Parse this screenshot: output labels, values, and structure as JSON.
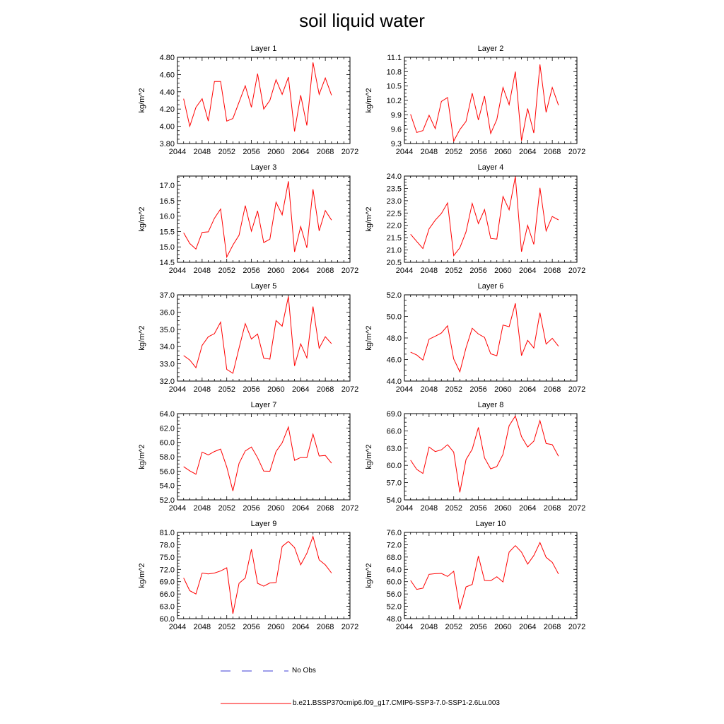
{
  "title": "soil liquid water",
  "legend": {
    "obs_label": "No Obs",
    "obs_color": "#3b3bd6",
    "model_label": "b.e21.BSSP370cmip6.f09_g17.CMIP6-SSP3-7.0-SSP1-2.6Lu.003",
    "model_color": "#ff0000"
  },
  "chart_data": [
    {
      "type": "line",
      "title": "Layer 1",
      "ylabel": "kg/m^2",
      "xlim": [
        2044,
        2072
      ],
      "xticks": [
        "2044",
        "2048",
        "2052",
        "2056",
        "2060",
        "2064",
        "2068",
        "2072"
      ],
      "ylim": [
        3.8,
        4.8
      ],
      "yticks": [
        "3.80",
        "4.00",
        "4.20",
        "4.40",
        "4.60",
        "4.80"
      ],
      "x": [
        2045,
        2046,
        2047,
        2048,
        2049,
        2050,
        2051,
        2052,
        2053,
        2054,
        2055,
        2056,
        2057,
        2058,
        2059,
        2060,
        2061,
        2062,
        2063,
        2064,
        2065,
        2066,
        2067,
        2068,
        2069
      ],
      "series": [
        {
          "values": [
            4.32,
            4.0,
            4.22,
            4.32,
            4.06,
            4.52,
            4.52,
            4.06,
            4.09,
            4.28,
            4.47,
            4.22,
            4.61,
            4.2,
            4.3,
            4.54,
            4.37,
            4.57,
            3.94,
            4.36,
            4.01,
            4.74,
            4.37,
            4.56,
            4.36
          ]
        }
      ]
    },
    {
      "type": "line",
      "title": "Layer 2",
      "ylabel": "kg/m^2",
      "xlim": [
        2044,
        2072
      ],
      "xticks": [
        "2044",
        "2048",
        "2052",
        "2056",
        "2060",
        "2064",
        "2068",
        "2072"
      ],
      "ylim": [
        9.3,
        11.1
      ],
      "yticks": [
        "9.3",
        "9.6",
        "9.9",
        "10.2",
        "10.5",
        "10.8",
        "11.1"
      ],
      "x": [
        2045,
        2046,
        2047,
        2048,
        2049,
        2050,
        2051,
        2052,
        2053,
        2054,
        2055,
        2056,
        2057,
        2058,
        2059,
        2060,
        2061,
        2062,
        2063,
        2064,
        2065,
        2066,
        2067,
        2068,
        2069
      ],
      "series": [
        {
          "values": [
            9.91,
            9.53,
            9.57,
            9.89,
            9.61,
            10.18,
            10.26,
            9.35,
            9.59,
            9.76,
            10.35,
            9.79,
            10.29,
            9.51,
            9.8,
            10.47,
            10.11,
            10.8,
            9.36,
            10.03,
            9.52,
            10.95,
            9.95,
            10.47,
            10.1
          ]
        }
      ]
    },
    {
      "type": "line",
      "title": "Layer 3",
      "ylabel": "kg/m^2",
      "xlim": [
        2044,
        2072
      ],
      "xticks": [
        "2044",
        "2048",
        "2052",
        "2056",
        "2060",
        "2064",
        "2068",
        "2072"
      ],
      "ylim": [
        14.5,
        17.3
      ],
      "yticks": [
        "14.5",
        "15.0",
        "15.5",
        "16.0",
        "16.5",
        "17.0"
      ],
      "x": [
        2045,
        2046,
        2047,
        2048,
        2049,
        2050,
        2051,
        2052,
        2053,
        2054,
        2055,
        2056,
        2057,
        2058,
        2059,
        2060,
        2061,
        2062,
        2063,
        2064,
        2065,
        2066,
        2067,
        2068,
        2069
      ],
      "series": [
        {
          "values": [
            15.46,
            15.11,
            14.93,
            15.47,
            15.49,
            15.93,
            16.23,
            14.67,
            15.06,
            15.38,
            16.34,
            15.51,
            16.17,
            15.14,
            15.25,
            16.45,
            16.04,
            17.13,
            14.84,
            15.66,
            14.97,
            16.87,
            15.52,
            16.18,
            15.87
          ]
        }
      ]
    },
    {
      "type": "line",
      "title": "Layer 4",
      "ylabel": "kg/m^2",
      "xlim": [
        2044,
        2072
      ],
      "xticks": [
        "2044",
        "2048",
        "2052",
        "2056",
        "2060",
        "2064",
        "2068",
        "2072"
      ],
      "ylim": [
        20.5,
        24.0
      ],
      "yticks": [
        "20.5",
        "21.0",
        "21.5",
        "22.0",
        "22.5",
        "23.0",
        "23.5",
        "24.0"
      ],
      "x": [
        2045,
        2046,
        2047,
        2048,
        2049,
        2050,
        2051,
        2052,
        2053,
        2054,
        2055,
        2056,
        2057,
        2058,
        2059,
        2060,
        2061,
        2062,
        2063,
        2064,
        2065,
        2066,
        2067,
        2068,
        2069
      ],
      "series": [
        {
          "values": [
            21.64,
            21.35,
            21.06,
            21.86,
            22.21,
            22.48,
            22.91,
            20.77,
            21.09,
            21.73,
            22.89,
            22.07,
            22.64,
            21.47,
            21.44,
            23.17,
            22.63,
            23.98,
            20.93,
            22.0,
            21.23,
            23.52,
            21.77,
            22.36,
            22.22
          ]
        }
      ]
    },
    {
      "type": "line",
      "title": "Layer 5",
      "ylabel": "kg/m^2",
      "xlim": [
        2044,
        2072
      ],
      "xticks": [
        "2044",
        "2048",
        "2052",
        "2056",
        "2060",
        "2064",
        "2068",
        "2072"
      ],
      "ylim": [
        32.0,
        37.0
      ],
      "yticks": [
        "32.0",
        "33.0",
        "34.0",
        "35.0",
        "36.0",
        "37.0"
      ],
      "x": [
        2045,
        2046,
        2047,
        2048,
        2049,
        2050,
        2051,
        2052,
        2053,
        2054,
        2055,
        2056,
        2057,
        2058,
        2059,
        2060,
        2061,
        2062,
        2063,
        2064,
        2065,
        2066,
        2067,
        2068,
        2069
      ],
      "series": [
        {
          "values": [
            33.48,
            33.22,
            32.78,
            34.07,
            34.57,
            34.75,
            35.42,
            32.68,
            32.45,
            33.92,
            35.33,
            34.44,
            34.73,
            33.33,
            33.27,
            35.51,
            35.18,
            36.9,
            32.88,
            34.16,
            33.35,
            36.32,
            33.9,
            34.57,
            34.17
          ]
        }
      ]
    },
    {
      "type": "line",
      "title": "Layer 6",
      "ylabel": "kg/m^2",
      "xlim": [
        2044,
        2072
      ],
      "xticks": [
        "2044",
        "2048",
        "2052",
        "2056",
        "2060",
        "2064",
        "2068",
        "2072"
      ],
      "ylim": [
        44.0,
        52.0
      ],
      "yticks": [
        "44.0",
        "46.0",
        "48.0",
        "50.0",
        "52.0"
      ],
      "x": [
        2045,
        2046,
        2047,
        2048,
        2049,
        2050,
        2051,
        2052,
        2053,
        2054,
        2055,
        2056,
        2057,
        2058,
        2059,
        2060,
        2061,
        2062,
        2063,
        2064,
        2065,
        2066,
        2067,
        2068,
        2069
      ],
      "series": [
        {
          "values": [
            46.68,
            46.42,
            45.95,
            47.89,
            48.16,
            48.46,
            49.13,
            46.05,
            44.86,
            47.08,
            48.9,
            48.37,
            48.05,
            46.53,
            46.35,
            49.2,
            49.04,
            51.21,
            46.37,
            47.78,
            47.07,
            50.34,
            47.43,
            47.97,
            47.23
          ]
        }
      ]
    },
    {
      "type": "line",
      "title": "Layer 7",
      "ylabel": "kg/m^2",
      "xlim": [
        2044,
        2072
      ],
      "xticks": [
        "2044",
        "2048",
        "2052",
        "2056",
        "2060",
        "2064",
        "2068",
        "2072"
      ],
      "ylim": [
        52.0,
        64.0
      ],
      "yticks": [
        "52.0",
        "54.0",
        "56.0",
        "58.0",
        "60.0",
        "62.0",
        "64.0"
      ],
      "x": [
        2045,
        2046,
        2047,
        2048,
        2049,
        2050,
        2051,
        2052,
        2053,
        2054,
        2055,
        2056,
        2057,
        2058,
        2059,
        2060,
        2061,
        2062,
        2063,
        2064,
        2065,
        2066,
        2067,
        2068,
        2069
      ],
      "series": [
        {
          "values": [
            56.61,
            56.04,
            55.57,
            58.65,
            58.26,
            58.73,
            59.07,
            56.58,
            53.24,
            57.08,
            58.81,
            59.36,
            57.87,
            56.0,
            55.98,
            58.73,
            59.94,
            62.14,
            57.5,
            57.89,
            57.87,
            61.15,
            58.1,
            58.18,
            57.1
          ]
        }
      ]
    },
    {
      "type": "line",
      "title": "Layer 8",
      "ylabel": "kg/m^2",
      "xlim": [
        2044,
        2072
      ],
      "xticks": [
        "2044",
        "2048",
        "2052",
        "2056",
        "2060",
        "2064",
        "2068",
        "2072"
      ],
      "ylim": [
        54.0,
        69.0
      ],
      "yticks": [
        "54.0",
        "57.0",
        "60.0",
        "63.0",
        "66.0",
        "69.0"
      ],
      "x": [
        2045,
        2046,
        2047,
        2048,
        2049,
        2050,
        2051,
        2052,
        2053,
        2054,
        2055,
        2056,
        2057,
        2058,
        2059,
        2060,
        2061,
        2062,
        2063,
        2064,
        2065,
        2066,
        2067,
        2068,
        2069
      ],
      "series": [
        {
          "values": [
            60.9,
            59.3,
            58.6,
            63.2,
            62.4,
            62.7,
            63.6,
            62.3,
            55.3,
            61.0,
            62.8,
            66.6,
            61.3,
            59.4,
            59.8,
            61.9,
            66.9,
            68.6,
            65.0,
            63.2,
            64.2,
            67.8,
            63.8,
            63.6,
            61.6
          ]
        }
      ]
    },
    {
      "type": "line",
      "title": "Layer 9",
      "ylabel": "kg/m^2",
      "xlim": [
        2044,
        2072
      ],
      "xticks": [
        "2044",
        "2048",
        "2052",
        "2056",
        "2060",
        "2064",
        "2068",
        "2072"
      ],
      "ylim": [
        60.0,
        81.0
      ],
      "yticks": [
        "60.0",
        "63.0",
        "66.0",
        "69.0",
        "72.0",
        "75.0",
        "78.0",
        "81.0"
      ],
      "x": [
        2045,
        2046,
        2047,
        2048,
        2049,
        2050,
        2051,
        2052,
        2053,
        2054,
        2055,
        2056,
        2057,
        2058,
        2059,
        2060,
        2061,
        2062,
        2063,
        2064,
        2065,
        2066,
        2067,
        2068,
        2069
      ],
      "series": [
        {
          "values": [
            69.9,
            66.8,
            66.0,
            71.1,
            70.9,
            71.1,
            71.6,
            72.4,
            61.2,
            68.6,
            69.9,
            76.9,
            68.6,
            67.9,
            68.7,
            68.8,
            77.6,
            78.8,
            77.3,
            73.1,
            75.9,
            80.0,
            74.3,
            73.1,
            71.1
          ]
        }
      ]
    },
    {
      "type": "line",
      "title": "Layer 10",
      "ylabel": "kg/m^2",
      "xlim": [
        2044,
        2072
      ],
      "xticks": [
        "2044",
        "2048",
        "2052",
        "2056",
        "2060",
        "2064",
        "2068",
        "2072"
      ],
      "ylim": [
        48.0,
        76.0
      ],
      "yticks": [
        "48.0",
        "52.0",
        "56.0",
        "60.0",
        "64.0",
        "68.0",
        "72.0",
        "76.0"
      ],
      "x": [
        2045,
        2046,
        2047,
        2048,
        2049,
        2050,
        2051,
        2052,
        2053,
        2054,
        2055,
        2056,
        2057,
        2058,
        2059,
        2060,
        2061,
        2062,
        2063,
        2064,
        2065,
        2066,
        2067,
        2068,
        2069
      ],
      "series": [
        {
          "values": [
            60.4,
            57.5,
            57.9,
            62.4,
            62.6,
            62.7,
            61.7,
            63.4,
            51.0,
            58.3,
            59.1,
            68.3,
            60.4,
            60.3,
            61.6,
            59.9,
            69.6,
            71.7,
            69.6,
            65.7,
            68.5,
            72.7,
            67.9,
            66.3,
            62.5
          ]
        }
      ]
    }
  ]
}
